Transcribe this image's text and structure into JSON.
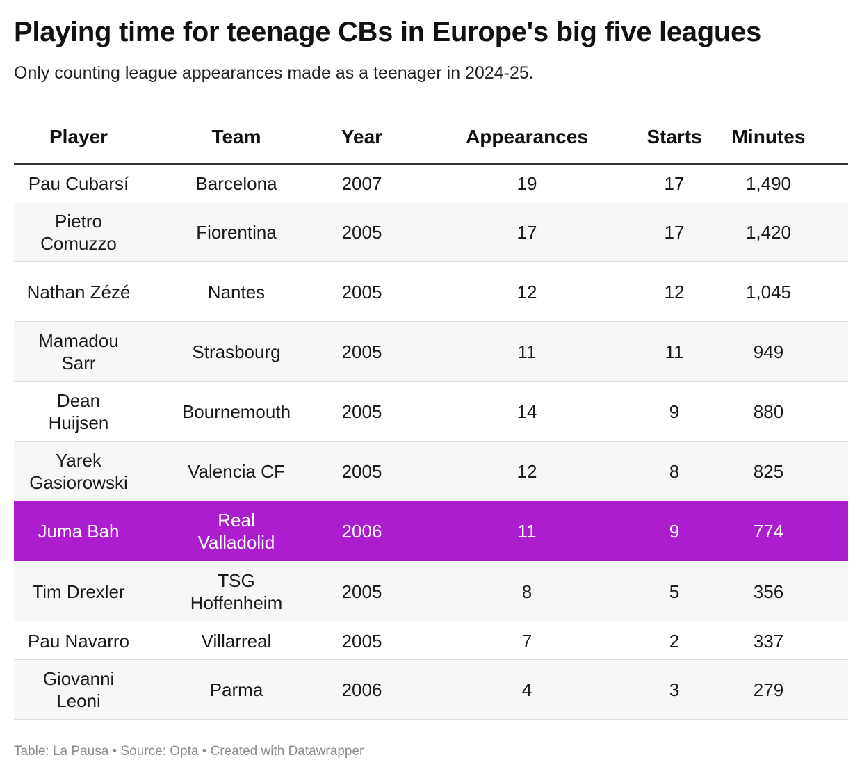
{
  "title": "Playing time for teenage CBs in Europe's big five leagues",
  "subtitle": "Only counting league appearances made as a teenager in 2024-25.",
  "footer": "Table: La Pausa • Source: Opta • Created with Datawrapper",
  "colors": {
    "highlight": "#ab1dce",
    "row_alt": "#f7f7f7",
    "header_rule": "#333333"
  },
  "chart_data": {
    "type": "table",
    "columns": [
      "Player",
      "Team",
      "Year",
      "Appearances",
      "Starts",
      "Minutes"
    ],
    "rows": [
      {
        "player": "Pau Cubarsí",
        "team": "Barcelona",
        "year": "2007",
        "appearances": "19",
        "starts": "17",
        "minutes": "1,490",
        "highlight": false
      },
      {
        "player": "Pietro Comuzzo",
        "team": "Fiorentina",
        "year": "2005",
        "appearances": "17",
        "starts": "17",
        "minutes": "1,420",
        "highlight": false
      },
      {
        "player": "Nathan Zézé",
        "team": "Nantes",
        "year": "2005",
        "appearances": "12",
        "starts": "12",
        "minutes": "1,045",
        "highlight": false
      },
      {
        "player": "Mamadou Sarr",
        "team": "Strasbourg",
        "year": "2005",
        "appearances": "11",
        "starts": "11",
        "minutes": "949",
        "highlight": false
      },
      {
        "player": "Dean Huijsen",
        "team": "Bournemouth",
        "year": "2005",
        "appearances": "14",
        "starts": "9",
        "minutes": "880",
        "highlight": false
      },
      {
        "player": "Yarek Gasiorowski",
        "team": "Valencia CF",
        "year": "2005",
        "appearances": "12",
        "starts": "8",
        "minutes": "825",
        "highlight": false
      },
      {
        "player": "Juma Bah",
        "team": "Real Valladolid",
        "year": "2006",
        "appearances": "11",
        "starts": "9",
        "minutes": "774",
        "highlight": true
      },
      {
        "player": "Tim Drexler",
        "team": "TSG Hoffenheim",
        "year": "2005",
        "appearances": "8",
        "starts": "5",
        "minutes": "356",
        "highlight": false
      },
      {
        "player": "Pau Navarro",
        "team": "Villarreal",
        "year": "2005",
        "appearances": "7",
        "starts": "2",
        "minutes": "337",
        "highlight": false
      },
      {
        "player": "Giovanni Leoni",
        "team": "Parma",
        "year": "2006",
        "appearances": "4",
        "starts": "3",
        "minutes": "279",
        "highlight": false
      }
    ]
  }
}
